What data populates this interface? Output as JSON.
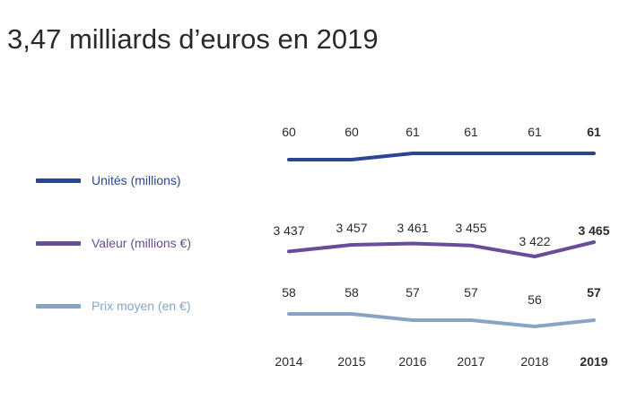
{
  "title": "3,47 milliards d’euros en 2019",
  "chart_data": {
    "type": "line",
    "x": [
      "2014",
      "2015",
      "2016",
      "2017",
      "2018",
      "2019"
    ],
    "series": [
      {
        "name": "Unités (millions)",
        "color": "#2b4593",
        "values": [
          60,
          60,
          61,
          61,
          61,
          61
        ],
        "labels": [
          "60",
          "60",
          "61",
          "61",
          "61",
          "61"
        ]
      },
      {
        "name": "Valeur (millions €)",
        "color": "#6a4c9c",
        "values": [
          3437,
          3457,
          3461,
          3455,
          3422,
          3465
        ],
        "labels": [
          "3 437",
          "3 457",
          "3 461",
          "3 455",
          "3 422",
          "3 465"
        ]
      },
      {
        "name": "Prix moyen (en €)",
        "color": "#87a5c3",
        "values": [
          58,
          58,
          57,
          57,
          56,
          57
        ],
        "labels": [
          "58",
          "58",
          "57",
          "57",
          "56",
          "57"
        ]
      }
    ],
    "highlight_last": true,
    "legend_position": "left"
  }
}
